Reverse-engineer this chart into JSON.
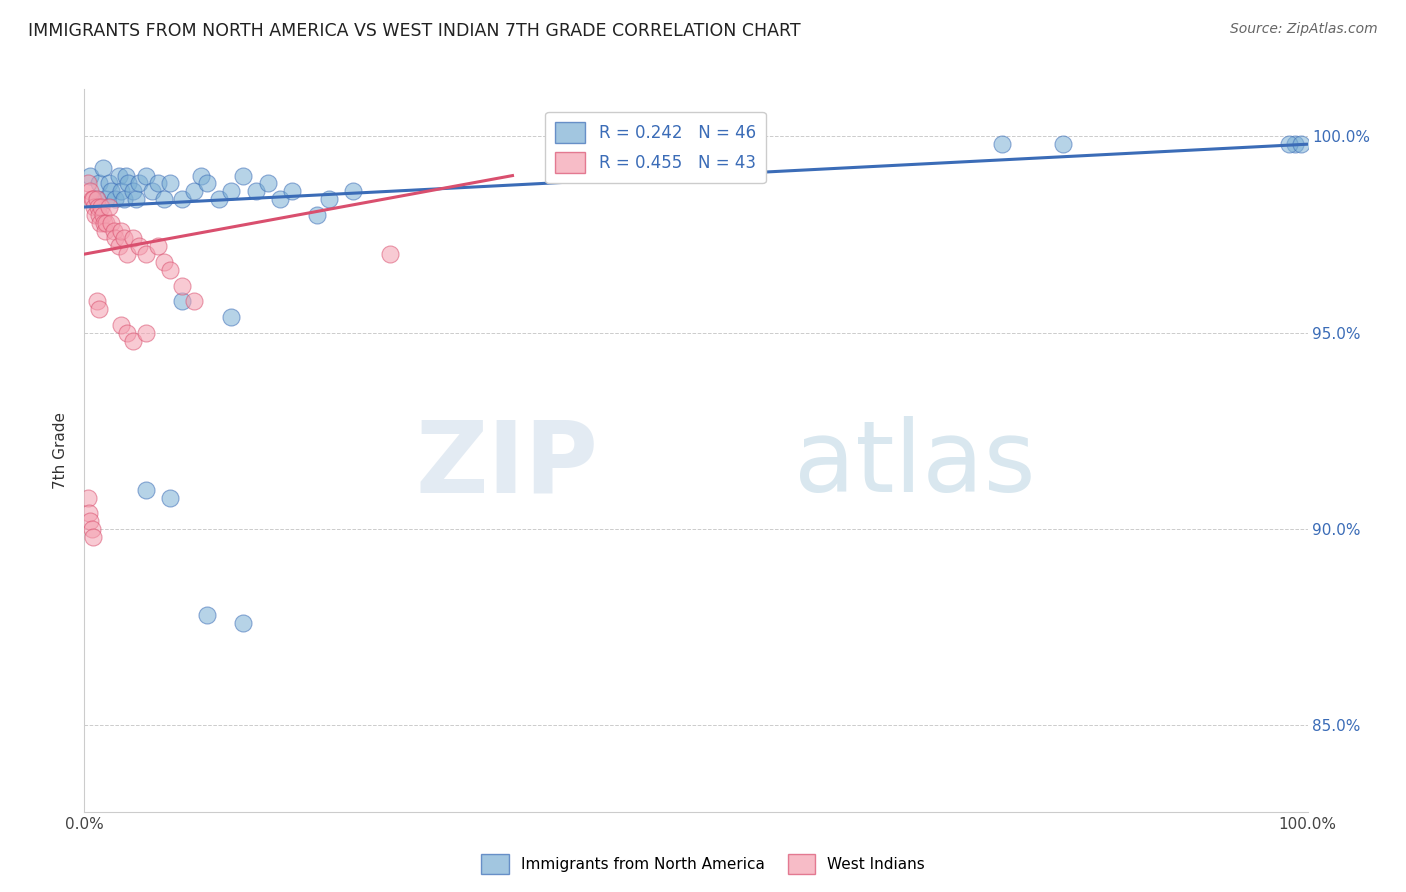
{
  "title": "IMMIGRANTS FROM NORTH AMERICA VS WEST INDIAN 7TH GRADE CORRELATION CHART",
  "source": "Source: ZipAtlas.com",
  "ylabel": "7th Grade",
  "ytick_labels": [
    "100.0%",
    "95.0%",
    "90.0%",
    "85.0%"
  ],
  "ytick_values": [
    1.0,
    0.95,
    0.9,
    0.85
  ],
  "xlim": [
    0.0,
    1.0
  ],
  "ylim": [
    0.828,
    1.012
  ],
  "legend_blue_label": "Immigrants from North America",
  "legend_pink_label": "West Indians",
  "legend_r_blue": "R = 0.242",
  "legend_n_blue": "N = 46",
  "legend_r_pink": "R = 0.455",
  "legend_n_pink": "N = 43",
  "blue_color": "#7BAFD4",
  "pink_color": "#F4A0B0",
  "trendline_blue": "#3B6CB7",
  "trendline_pink": "#D94F6E",
  "watermark_zip": "ZIP",
  "watermark_atlas": "atlas",
  "blue_points": [
    [
      0.005,
      0.99
    ],
    [
      0.01,
      0.984
    ],
    [
      0.012,
      0.988
    ],
    [
      0.015,
      0.992
    ],
    [
      0.018,
      0.984
    ],
    [
      0.02,
      0.988
    ],
    [
      0.022,
      0.986
    ],
    [
      0.025,
      0.984
    ],
    [
      0.028,
      0.99
    ],
    [
      0.03,
      0.986
    ],
    [
      0.032,
      0.984
    ],
    [
      0.034,
      0.99
    ],
    [
      0.036,
      0.988
    ],
    [
      0.04,
      0.986
    ],
    [
      0.042,
      0.984
    ],
    [
      0.045,
      0.988
    ],
    [
      0.05,
      0.99
    ],
    [
      0.055,
      0.986
    ],
    [
      0.06,
      0.988
    ],
    [
      0.065,
      0.984
    ],
    [
      0.07,
      0.988
    ],
    [
      0.08,
      0.984
    ],
    [
      0.09,
      0.986
    ],
    [
      0.095,
      0.99
    ],
    [
      0.1,
      0.988
    ],
    [
      0.11,
      0.984
    ],
    [
      0.12,
      0.986
    ],
    [
      0.13,
      0.99
    ],
    [
      0.14,
      0.986
    ],
    [
      0.15,
      0.988
    ],
    [
      0.16,
      0.984
    ],
    [
      0.17,
      0.986
    ],
    [
      0.19,
      0.98
    ],
    [
      0.2,
      0.984
    ],
    [
      0.22,
      0.986
    ],
    [
      0.08,
      0.958
    ],
    [
      0.12,
      0.954
    ],
    [
      0.05,
      0.91
    ],
    [
      0.07,
      0.908
    ],
    [
      0.1,
      0.878
    ],
    [
      0.13,
      0.876
    ],
    [
      0.99,
      0.998
    ],
    [
      0.75,
      0.998
    ],
    [
      0.8,
      0.998
    ],
    [
      0.985,
      0.998
    ],
    [
      0.995,
      0.998
    ]
  ],
  "pink_points": [
    [
      0.003,
      0.988
    ],
    [
      0.005,
      0.986
    ],
    [
      0.006,
      0.984
    ],
    [
      0.007,
      0.984
    ],
    [
      0.008,
      0.982
    ],
    [
      0.009,
      0.98
    ],
    [
      0.01,
      0.984
    ],
    [
      0.011,
      0.982
    ],
    [
      0.012,
      0.98
    ],
    [
      0.013,
      0.978
    ],
    [
      0.014,
      0.982
    ],
    [
      0.015,
      0.98
    ],
    [
      0.016,
      0.978
    ],
    [
      0.017,
      0.976
    ],
    [
      0.018,
      0.978
    ],
    [
      0.02,
      0.982
    ],
    [
      0.022,
      0.978
    ],
    [
      0.024,
      0.976
    ],
    [
      0.025,
      0.974
    ],
    [
      0.028,
      0.972
    ],
    [
      0.03,
      0.976
    ],
    [
      0.032,
      0.974
    ],
    [
      0.035,
      0.97
    ],
    [
      0.04,
      0.974
    ],
    [
      0.045,
      0.972
    ],
    [
      0.05,
      0.97
    ],
    [
      0.06,
      0.972
    ],
    [
      0.065,
      0.968
    ],
    [
      0.07,
      0.966
    ],
    [
      0.08,
      0.962
    ],
    [
      0.09,
      0.958
    ],
    [
      0.01,
      0.958
    ],
    [
      0.012,
      0.956
    ],
    [
      0.03,
      0.952
    ],
    [
      0.035,
      0.95
    ],
    [
      0.04,
      0.948
    ],
    [
      0.05,
      0.95
    ],
    [
      0.003,
      0.908
    ],
    [
      0.004,
      0.904
    ],
    [
      0.005,
      0.902
    ],
    [
      0.006,
      0.9
    ],
    [
      0.007,
      0.898
    ],
    [
      0.25,
      0.97
    ]
  ]
}
